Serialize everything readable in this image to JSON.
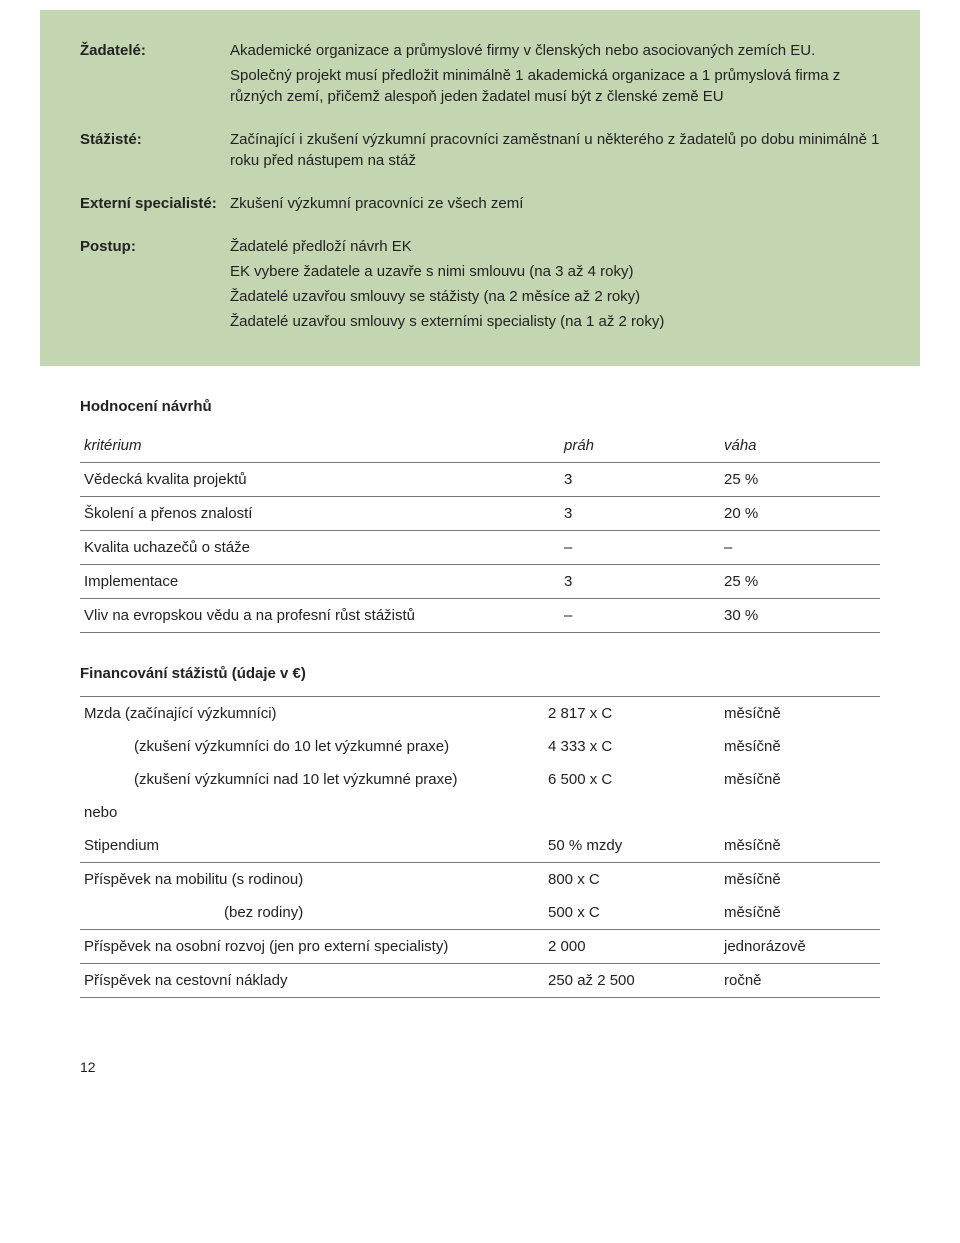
{
  "colors": {
    "box_bg": "#c4d5b1",
    "rule": "#777777",
    "text": "#222222"
  },
  "definitions": [
    {
      "label": "Žadatelé:",
      "paragraphs": [
        "Akademické organizace a průmyslové firmy v členských nebo asociovaných zemích EU.",
        "Společný projekt musí předložit minimálně 1 akademická organizace a 1 průmyslová firma z různých zemí, přičemž alespoň jeden žadatel musí být z členské země EU"
      ]
    },
    {
      "label": "Stážisté:",
      "paragraphs": [
        "Začínající i zkušení výzkumní pracovníci zaměstnaní u některého z žadatelů po dobu minimálně 1 roku před nástupem na stáž"
      ]
    },
    {
      "label": "Externí specialisté:",
      "paragraphs": [
        "Zkušení výzkumní pracovníci ze všech zemí"
      ]
    },
    {
      "label": "Postup:",
      "paragraphs": [
        "Žadatelé předloží návrh EK",
        "EK vybere žadatele a uzavře s nimi smlouvu (na 3 až 4 roky)",
        "Žadatelé uzavřou smlouvy se stážisty (na 2 měsíce až 2 roky)",
        "Žadatelé uzavřou smlouvy s externími specialisty (na 1 až 2 roky)"
      ]
    }
  ],
  "eval_title": "Hodnocení návrhů",
  "eval_head": [
    "kritérium",
    "práh",
    "váha"
  ],
  "eval_rows": [
    [
      "Vědecká kvalita projektů",
      "3",
      "25 %"
    ],
    [
      "Školení a přenos znalostí",
      "3",
      "20 %"
    ],
    [
      "Kvalita uchazečů o stáže",
      "–",
      "–"
    ],
    [
      "Implementace",
      "3",
      "25 %"
    ],
    [
      "Vliv na evropskou vědu a na profesní růst stážistů",
      "–",
      "30 %"
    ]
  ],
  "fund_title": "Financování stážistů (údaje v €)",
  "fund_rows": [
    {
      "c1": "Mzda (začínající výzkumníci)",
      "c2": "2 817 x C",
      "c3": "měsíčně",
      "cls": "topsep"
    },
    {
      "c1_indent": "(zkušení výzkumníci do 10 let výzkumné praxe)",
      "c2": "4 333 x C",
      "c3": "měsíčně"
    },
    {
      "c1_indent": "(zkušení výzkumníci nad 10 let výzkumné praxe)",
      "c2": "6 500 x C",
      "c3": "měsíčně"
    },
    {
      "c1": "nebo",
      "c2": "",
      "c3": ""
    },
    {
      "c1": "Stipendium",
      "c2": "50 % mzdy",
      "c3": "měsíčně",
      "cls": "sep"
    },
    {
      "c1": "Příspěvek na mobilitu (s rodinou)",
      "c2": "800 x C",
      "c3": "měsíčně"
    },
    {
      "c1_indent2": "(bez rodiny)",
      "c2": "500 x C",
      "c3": "měsíčně",
      "cls": "sep"
    },
    {
      "c1": "Příspěvek na osobní rozvoj (jen pro externí specialisty)",
      "c2": "2 000",
      "c3": "jednorázově",
      "cls": "sep"
    },
    {
      "c1": "Příspěvek na cestovní náklady",
      "c2": "250 až 2 500",
      "c3": "ročně",
      "cls": "sep"
    }
  ],
  "pagenum": "12"
}
